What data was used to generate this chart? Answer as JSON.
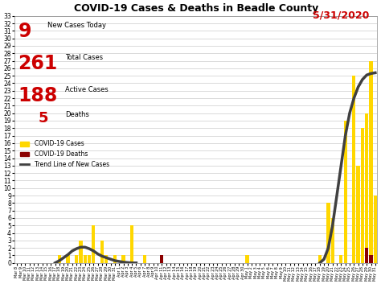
{
  "title": "COVID-19 Cases & Deaths in Beadle County",
  "date_label": "5/31/2020",
  "stats": {
    "new_cases": "9",
    "total_cases": "261",
    "active_cases": "188",
    "deaths": "5"
  },
  "ylim": [
    0,
    33
  ],
  "yticks": [
    0,
    1,
    2,
    3,
    4,
    5,
    6,
    7,
    8,
    9,
    10,
    11,
    12,
    13,
    14,
    15,
    16,
    17,
    18,
    19,
    20,
    21,
    22,
    23,
    24,
    25,
    26,
    27,
    28,
    29,
    30,
    31,
    32,
    33
  ],
  "bar_color": "#FFD700",
  "death_color": "#8B0000",
  "trend_color": "#404040",
  "background_color": "#FFFFFF",
  "title_color": "#000000",
  "date_color": "#CC0000",
  "stat_number_color": "#CC0000",
  "stat_text_color": "#000000",
  "legend_labels": [
    "COVID-19 Cases",
    "COVID-19 Deaths",
    "Trend Line of New Cases"
  ],
  "dates": [
    "Mar 8",
    "Mar 9",
    "Mar 10",
    "Mar 11",
    "Mar 12",
    "Mar 13",
    "Mar 14",
    "Mar 15",
    "Mar 16",
    "Mar 17",
    "Mar 18",
    "Mar 19",
    "Mar 20",
    "Mar 21",
    "Mar 22",
    "Mar 23",
    "Mar 24",
    "Mar 25",
    "Mar 26",
    "Mar 27",
    "Mar 28",
    "Mar 29",
    "Mar 30",
    "Mar 31",
    "Apr 1",
    "Apr 2",
    "Apr 3",
    "Apr 4",
    "Apr 5",
    "Apr 6",
    "Apr 7",
    "Apr 8",
    "Apr 9",
    "Apr 10",
    "Apr 11",
    "Apr 12",
    "Apr 13",
    "Apr 14",
    "Apr 15",
    "Apr 16",
    "Apr 17",
    "Apr 18",
    "Apr 19",
    "Apr 20",
    "Apr 21",
    "Apr 22",
    "Apr 23",
    "Apr 24",
    "Apr 25",
    "Apr 26",
    "Apr 27",
    "Apr 28",
    "Apr 29",
    "Apr 30",
    "May 1",
    "May 2",
    "May 3",
    "May 4",
    "May 5",
    "May 6",
    "May 7",
    "May 8",
    "May 9",
    "May 10",
    "May 11",
    "May 12",
    "May 13",
    "May 14",
    "May 15",
    "May 16",
    "May 17",
    "May 18",
    "May 19",
    "May 20",
    "May 21",
    "May 22",
    "May 23",
    "May 24",
    "May 25",
    "May 26",
    "May 27",
    "May 28",
    "May 29",
    "May 30",
    "May 31"
  ],
  "cases": [
    0,
    0,
    0,
    0,
    0,
    0,
    0,
    0,
    0,
    0,
    1,
    0,
    1,
    0,
    1,
    3,
    1,
    1,
    5,
    0,
    3,
    1,
    0,
    1,
    0,
    1,
    0,
    5,
    0,
    0,
    1,
    0,
    0,
    0,
    0,
    0,
    0,
    0,
    0,
    0,
    0,
    0,
    0,
    0,
    0,
    0,
    0,
    0,
    0,
    0,
    0,
    0,
    0,
    0,
    1,
    0,
    0,
    0,
    0,
    0,
    0,
    0,
    0,
    0,
    0,
    0,
    0,
    0,
    0,
    0,
    0,
    1,
    0,
    8,
    6,
    0,
    1,
    19,
    0,
    25,
    13,
    18,
    20,
    27,
    9
  ],
  "deaths": [
    0,
    0,
    0,
    0,
    0,
    0,
    0,
    0,
    0,
    0,
    0,
    0,
    0,
    0,
    0,
    0,
    0,
    0,
    0,
    0,
    0,
    0,
    0,
    0,
    0,
    0,
    0,
    0,
    0,
    0,
    0,
    0,
    0,
    0,
    1,
    0,
    0,
    0,
    0,
    0,
    0,
    0,
    0,
    0,
    0,
    0,
    0,
    0,
    0,
    0,
    0,
    0,
    0,
    0,
    0,
    0,
    0,
    0,
    0,
    0,
    0,
    0,
    0,
    0,
    0,
    0,
    0,
    0,
    0,
    0,
    0,
    0,
    0,
    0,
    0,
    0,
    0,
    0,
    0,
    0,
    0,
    0,
    2,
    1,
    0
  ],
  "trend_x_segments": [
    [
      9,
      10,
      11,
      12,
      13,
      14,
      15,
      16,
      17,
      18,
      19,
      20,
      21,
      22,
      23,
      24,
      25,
      26,
      27,
      28
    ],
    [
      71,
      72,
      73,
      74,
      75,
      76,
      77,
      78,
      79,
      80,
      81,
      82,
      83,
      84
    ]
  ],
  "trend_y_segments": [
    [
      0.0,
      0.3,
      0.7,
      1.1,
      1.6,
      1.9,
      2.1,
      2.1,
      1.9,
      1.6,
      1.2,
      0.9,
      0.7,
      0.5,
      0.3,
      0.2,
      0.1,
      0.05,
      0.0,
      0.0
    ],
    [
      0.0,
      0.5,
      2.0,
      5.0,
      9.0,
      13.0,
      17.0,
      20.0,
      22.0,
      23.5,
      24.5,
      25.1,
      25.3,
      25.4
    ]
  ]
}
